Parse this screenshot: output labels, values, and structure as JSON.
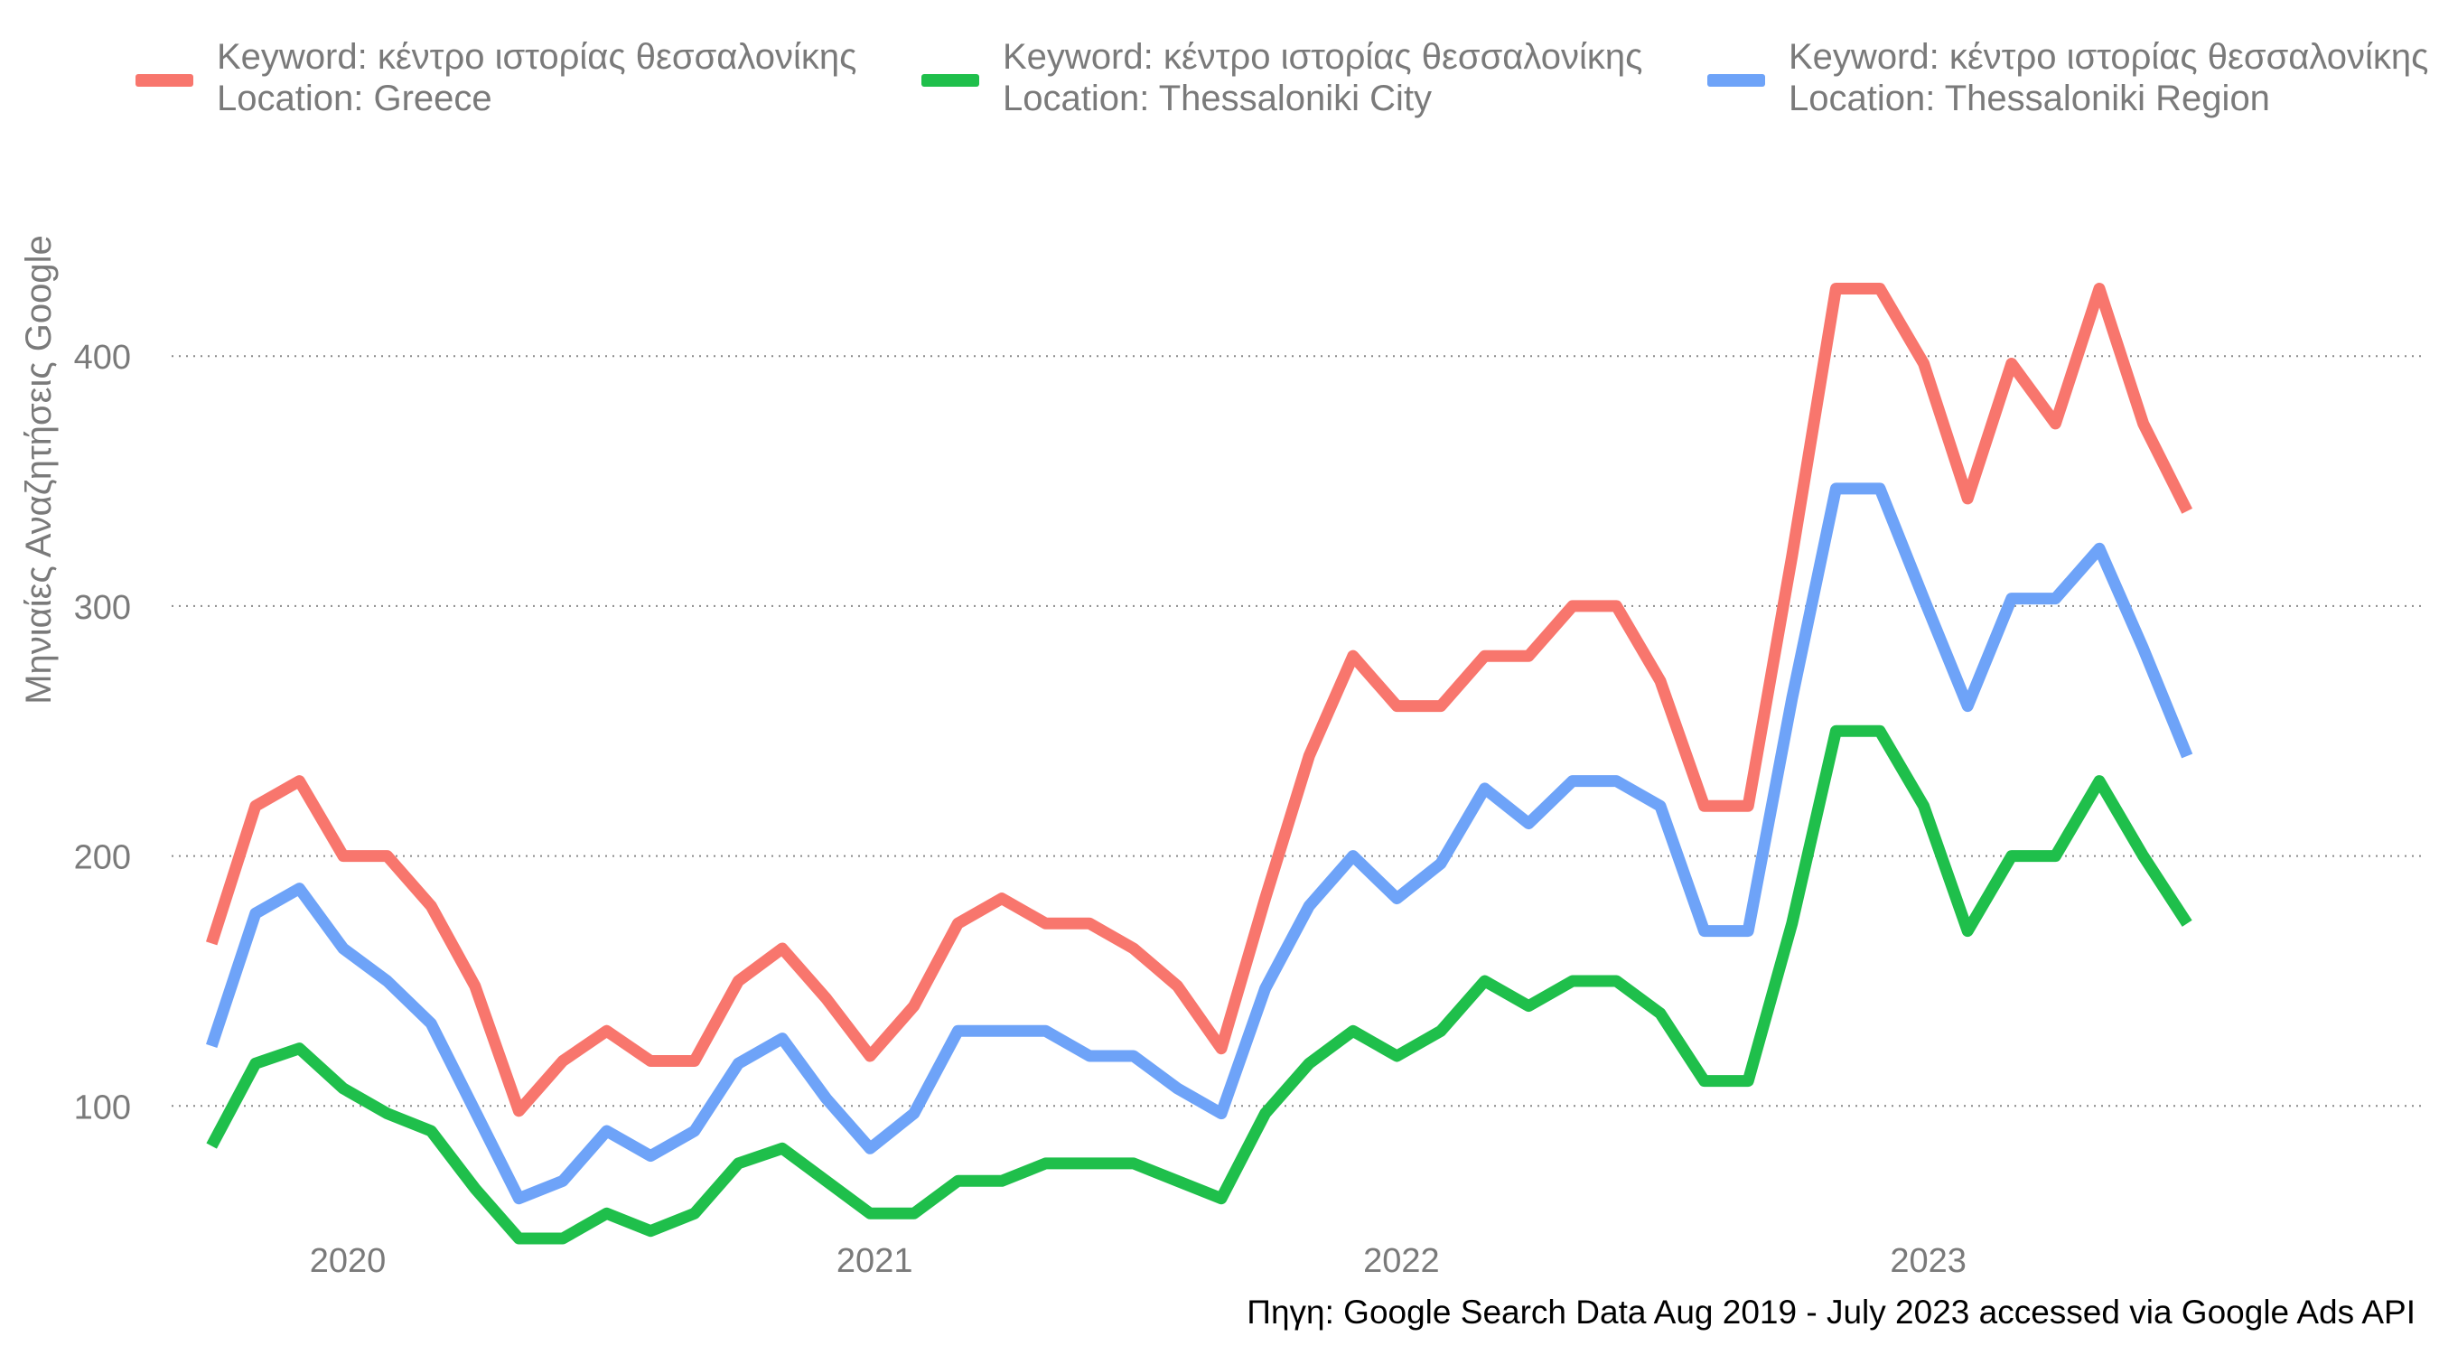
{
  "chart_data": {
    "type": "line",
    "title": "",
    "xlabel": "",
    "ylabel": "Μηνιαίες Αναζητήσεις Google",
    "y_ticks": [
      100,
      200,
      300,
      400
    ],
    "x_tick_labels": [
      "2020",
      "2021",
      "2022",
      "2023"
    ],
    "grid": "horizontal-dotted",
    "legend_position": "top",
    "dates": [
      "2019-10",
      "2019-11",
      "2019-12",
      "2020-01",
      "2020-02",
      "2020-03",
      "2020-04",
      "2020-05",
      "2020-06",
      "2020-07",
      "2020-08",
      "2020-09",
      "2020-10",
      "2020-11",
      "2020-12",
      "2021-01",
      "2021-02",
      "2021-03",
      "2021-04",
      "2021-05",
      "2021-06",
      "2021-07",
      "2021-08",
      "2021-09",
      "2021-10",
      "2021-11",
      "2021-12",
      "2022-01",
      "2022-02",
      "2022-03",
      "2022-04",
      "2022-05",
      "2022-06",
      "2022-07",
      "2022-08",
      "2022-09",
      "2022-10",
      "2022-11",
      "2022-12",
      "2023-01",
      "2023-02",
      "2023-03",
      "2023-04",
      "2023-05",
      "2023-06",
      "2023-07"
    ],
    "series": [
      {
        "legend_line1": "Keyword: κέντρο ιστορίας θεσσαλονίκης",
        "legend_line2": "Location: Greece",
        "color": "#f8766d",
        "values": [
          165,
          220,
          230,
          200,
          200,
          180,
          148,
          98,
          118,
          130,
          118,
          118,
          150,
          163,
          143,
          120,
          140,
          173,
          183,
          173,
          173,
          163,
          148,
          123,
          183,
          240,
          280,
          260,
          260,
          280,
          280,
          300,
          300,
          270,
          220,
          220,
          320,
          427,
          427,
          397,
          343,
          397,
          373,
          427,
          373,
          338
        ]
      },
      {
        "legend_line1": "Keyword: κέντρο ιστορίας θεσσαλονίκης",
        "legend_line2": "Location: Thessaloniki City",
        "color": "#1fbf4b",
        "values": [
          84,
          117,
          123,
          107,
          97,
          90,
          67,
          47,
          47,
          57,
          50,
          57,
          77,
          83,
          70,
          57,
          57,
          70,
          70,
          77,
          77,
          77,
          70,
          63,
          97,
          117,
          130,
          120,
          130,
          150,
          140,
          150,
          150,
          137,
          110,
          110,
          173,
          250,
          250,
          220,
          170,
          200,
          200,
          230,
          200,
          173
        ]
      },
      {
        "legend_line1": "Keyword: κέντρο ιστορίας θεσσαλονίκης",
        "legend_line2": "Location: Thessaloniki Region",
        "color": "#6ea3f8",
        "values": [
          124,
          177,
          187,
          163,
          150,
          133,
          98,
          63,
          70,
          90,
          80,
          90,
          117,
          127,
          103,
          83,
          97,
          130,
          130,
          130,
          120,
          120,
          107,
          97,
          147,
          180,
          200,
          183,
          197,
          227,
          213,
          230,
          230,
          220,
          170,
          170,
          263,
          347,
          347,
          303,
          260,
          303,
          303,
          323,
          283,
          240
        ]
      }
    ]
  },
  "source_note": "Πηγη: Google Search Data Aug 2019 - July 2023 accessed via Google Ads API"
}
